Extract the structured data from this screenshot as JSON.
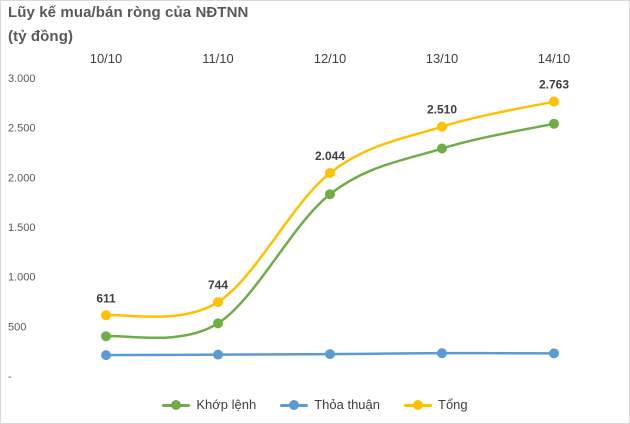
{
  "chart_data": {
    "type": "line",
    "title": "Lũy kế mua/bán ròng của NĐTNN",
    "subtitle": "(tỷ đồng)",
    "categories": [
      "10/10",
      "11/10",
      "12/10",
      "13/10",
      "14/10"
    ],
    "ylim": [
      0,
      3000
    ],
    "y_ticks": [
      0,
      500,
      1000,
      1500,
      2000,
      2500,
      3000
    ],
    "y_tick_labels": [
      "-",
      "500",
      "1.000",
      "1.500",
      "2.000",
      "2.500",
      "3.000"
    ],
    "x_axis_position": "top",
    "grid": false,
    "legend_position": "bottom",
    "series": [
      {
        "name": "Khớp lệnh",
        "color": "#70ad47",
        "values": [
          400,
          530,
          1830,
          2290,
          2540
        ]
      },
      {
        "name": "Thỏa thuận",
        "color": "#5b9bd5",
        "values": [
          210,
          215,
          220,
          230,
          228
        ]
      },
      {
        "name": "Tổng",
        "color": "#ffc000",
        "values": [
          611,
          744,
          2044,
          2510,
          2763
        ],
        "data_labels": [
          "611",
          "744",
          "2.044",
          "2.510",
          "2.763"
        ]
      }
    ]
  }
}
